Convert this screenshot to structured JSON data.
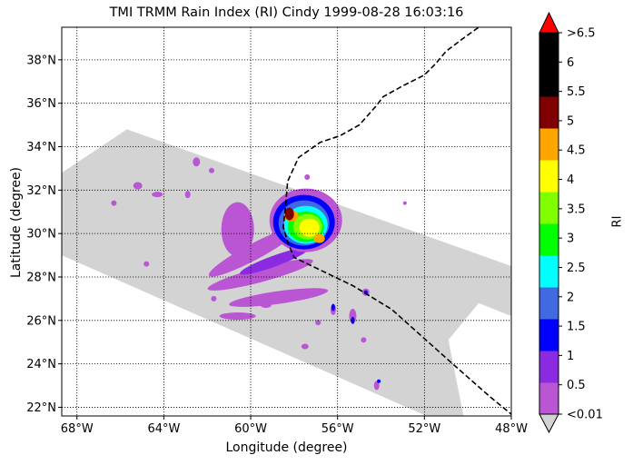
{
  "title": "TMI TRMM Rain Index (RI) Cindy 1999-08-28 16:03:16",
  "xlabel": "Longitude (degree)",
  "ylabel": "Latitude (degree)",
  "colorbar": {
    "label": "RI",
    "tick_labels": [
      "<0.01",
      "0.5",
      "1",
      "1.5",
      "2",
      "2.5",
      "3",
      "3.5",
      "4",
      "4.5",
      "5",
      "5.5",
      "6",
      ">6.5"
    ],
    "colors": [
      "#d3d3d3",
      "#ba55d3",
      "#8a2be2",
      "#0000ff",
      "#4169e1",
      "#00ffff",
      "#00ff00",
      "#7fff00",
      "#ffff00",
      "#ffa500",
      "#800000",
      "#000000",
      "#000000",
      "#ff0000"
    ]
  },
  "map": {
    "x_ticks": [
      {
        "value": -68,
        "label": "68°W"
      },
      {
        "value": -64,
        "label": "64°W"
      },
      {
        "value": -60,
        "label": "60°W"
      },
      {
        "value": -56,
        "label": "56°W"
      },
      {
        "value": -52,
        "label": "52°W"
      },
      {
        "value": -48,
        "label": "48°W"
      }
    ],
    "y_ticks": [
      {
        "value": 22,
        "label": "22°N"
      },
      {
        "value": 24,
        "label": "24°N"
      },
      {
        "value": 26,
        "label": "26°N"
      },
      {
        "value": 28,
        "label": "28°N"
      },
      {
        "value": 30,
        "label": "30°N"
      },
      {
        "value": 32,
        "label": "32°N"
      },
      {
        "value": 34,
        "label": "34°N"
      },
      {
        "value": 36,
        "label": "36°N"
      },
      {
        "value": 38,
        "label": "38°N"
      }
    ],
    "lon_range": [
      -68.7,
      -48.0
    ],
    "lat_range": [
      21.6,
      39.5
    ],
    "swath_lonlat": [
      [
        -68.7,
        32.8
      ],
      [
        -65.7,
        34.8
      ],
      [
        -48,
        28.5
      ],
      [
        -48,
        26.2
      ],
      [
        -49.5,
        26.8
      ],
      [
        -50.9,
        25.1
      ],
      [
        -50.2,
        21.6
      ],
      [
        -51.9,
        21.6
      ],
      [
        -68.7,
        29.0
      ]
    ],
    "storm_track_lonlat": [
      [
        -47.9,
        21.6
      ],
      [
        -49,
        22.5
      ],
      [
        -50.7,
        24
      ],
      [
        -53.5,
        26.5
      ],
      [
        -55.3,
        27.6
      ],
      [
        -58,
        28.9
      ],
      [
        -58.3,
        29.6
      ],
      [
        -58.5,
        30.3
      ],
      [
        -58.4,
        31.2
      ],
      [
        -58.3,
        32.4
      ],
      [
        -57.8,
        33.5
      ],
      [
        -56.8,
        34.2
      ],
      [
        -55.9,
        34.5
      ],
      [
        -55.0,
        35.0
      ],
      [
        -54.2,
        35.9
      ],
      [
        -53.9,
        36.3
      ],
      [
        -53.0,
        36.8
      ],
      [
        -52.0,
        37.3
      ],
      [
        -51.5,
        37.8
      ],
      [
        -51.0,
        38.4
      ],
      [
        -50.2,
        39.0
      ],
      [
        -49.5,
        39.5
      ]
    ],
    "storm_center_lonlat": [
      -58.3,
      30.4
    ]
  }
}
